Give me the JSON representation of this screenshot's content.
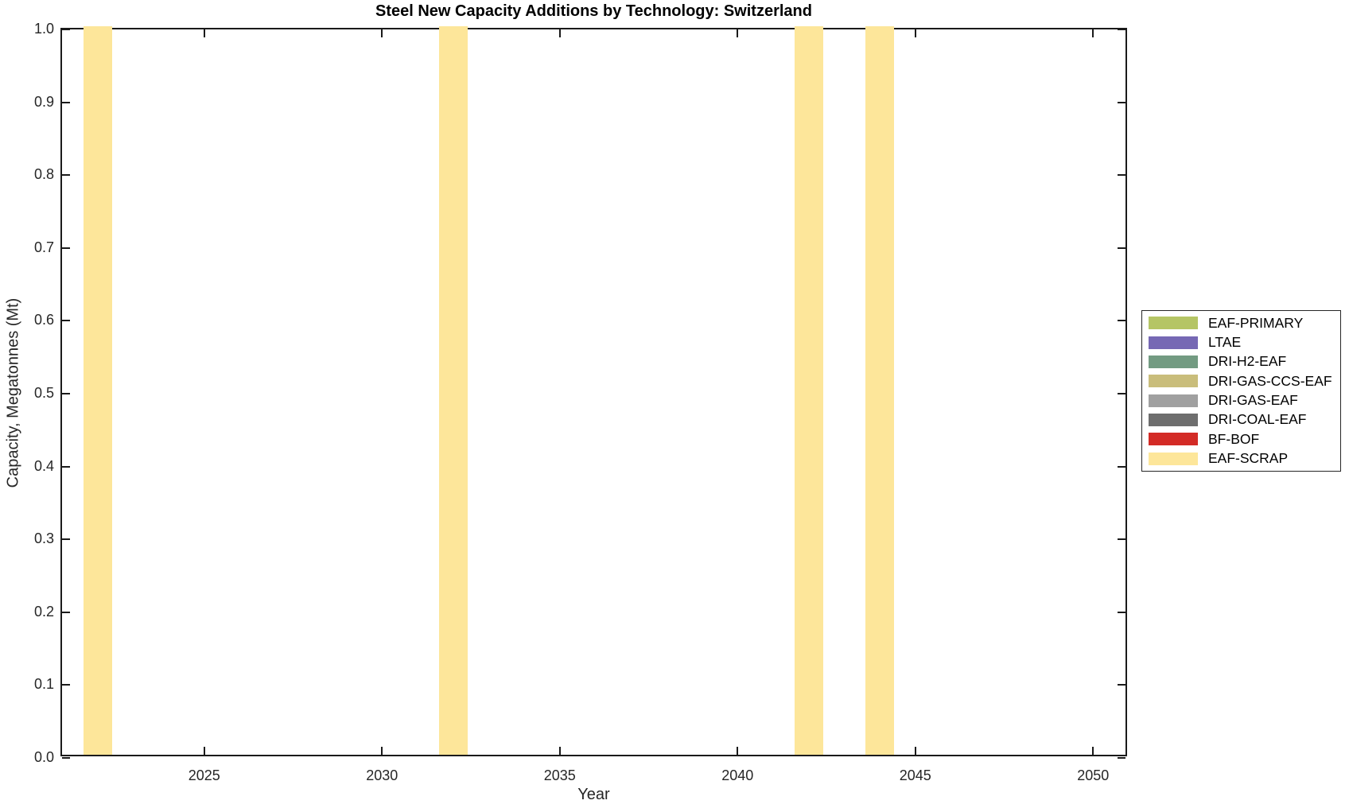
{
  "title": "Steel New Capacity Additions by Technology: Switzerland",
  "axes": {
    "xlabel": "Year",
    "ylabel": "Capacity, Megatonnes (Mt)",
    "x_tick_labels": [
      "2025",
      "2030",
      "2035",
      "2040",
      "2045",
      "2050"
    ],
    "y_tick_labels": [
      "0.0",
      "0.1",
      "0.2",
      "0.3",
      "0.4",
      "0.5",
      "0.6",
      "0.7",
      "0.8",
      "0.9",
      "1.0"
    ]
  },
  "legend": {
    "entries": [
      {
        "label": "EAF-PRIMARY",
        "color": "#B5C565"
      },
      {
        "label": "LTAE",
        "color": "#7668B4"
      },
      {
        "label": "DRI-H2-EAF",
        "color": "#739B82"
      },
      {
        "label": "DRI-GAS-CCS-EAF",
        "color": "#C9BD7B"
      },
      {
        "label": "DRI-GAS-EAF",
        "color": "#A0A0A0"
      },
      {
        "label": "DRI-COAL-EAF",
        "color": "#6E6E6E"
      },
      {
        "label": "BF-BOF",
        "color": "#D32B26"
      },
      {
        "label": "EAF-SCRAP",
        "color": "#FDE69A"
      }
    ]
  },
  "chart_data": {
    "type": "bar",
    "title": "Steel New Capacity Additions by Technology: Switzerland",
    "xlabel": "Year",
    "ylabel": "Capacity, Megatonnes (Mt)",
    "xlim": [
      2021,
      2051
    ],
    "ylim": [
      0.0,
      1.0
    ],
    "x_ticks": [
      2025,
      2030,
      2035,
      2040,
      2045,
      2050
    ],
    "y_ticks": [
      0.0,
      0.1,
      0.2,
      0.3,
      0.4,
      0.5,
      0.6,
      0.7,
      0.8,
      0.9,
      1.0
    ],
    "bar_width_years": 0.8,
    "grid": false,
    "legend_position": "outside-right",
    "series": [
      {
        "name": "EAF-PRIMARY",
        "color": "#B5C565",
        "x": [],
        "values": []
      },
      {
        "name": "LTAE",
        "color": "#7668B4",
        "x": [],
        "values": []
      },
      {
        "name": "DRI-H2-EAF",
        "color": "#739B82",
        "x": [],
        "values": []
      },
      {
        "name": "DRI-GAS-CCS-EAF",
        "color": "#C9BD7B",
        "x": [],
        "values": []
      },
      {
        "name": "DRI-GAS-EAF",
        "color": "#A0A0A0",
        "x": [],
        "values": []
      },
      {
        "name": "DRI-COAL-EAF",
        "color": "#6E6E6E",
        "x": [],
        "values": []
      },
      {
        "name": "BF-BOF",
        "color": "#D32B26",
        "x": [],
        "values": []
      },
      {
        "name": "EAF-SCRAP",
        "color": "#FDE69A",
        "x": [
          2022,
          2032,
          2042,
          2044
        ],
        "values": [
          1.0,
          1.0,
          1.0,
          1.0
        ]
      }
    ]
  }
}
